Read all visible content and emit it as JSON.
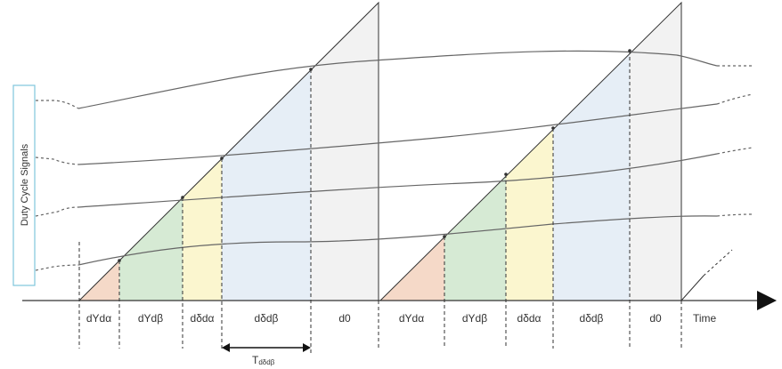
{
  "diagram": {
    "axis_label": "Time",
    "side_box_label": "Duty Cycle Signals",
    "period_marker": {
      "main": "T",
      "sub": "dδdβ"
    },
    "segment_labels": [
      "dYdα",
      "dYdβ",
      "dδdα",
      "dδdβ",
      "d0",
      "dYdα",
      "dYdβ",
      "dδdα",
      "dδdβ",
      "d0"
    ],
    "colors": {
      "dYdα": "#f5d9c8",
      "dYdβ": "#d6ead4",
      "dδdα": "#fbf6cf",
      "dδdβ": "#e6eef6",
      "d0": "#f2f2f2",
      "side_box_border": "#7fc6dc"
    }
  }
}
